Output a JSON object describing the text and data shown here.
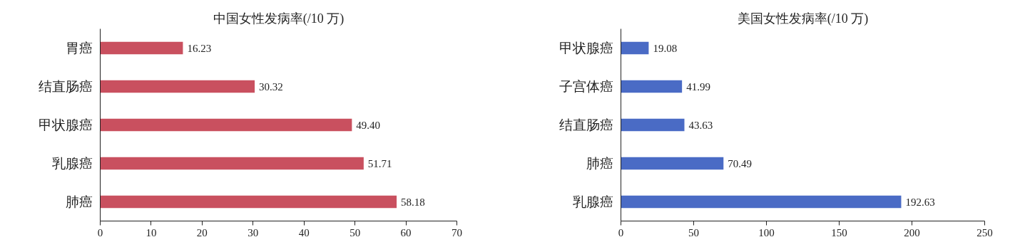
{
  "chart_data": [
    {
      "type": "bar",
      "orientation": "horizontal",
      "title": "中国女性发病率(/10 万)",
      "categories": [
        "胃癌",
        "结直肠癌",
        "甲状腺癌",
        "乳腺癌",
        "肺癌"
      ],
      "values": [
        16.23,
        30.32,
        49.4,
        51.71,
        58.18
      ],
      "value_labels": [
        "16.23",
        "30.32",
        "49.40",
        "51.71",
        "58.18"
      ],
      "color": "#c9505f",
      "xlim": [
        0,
        70
      ],
      "xticks": [
        0,
        10,
        20,
        30,
        40,
        50,
        60,
        70
      ],
      "grid": false
    },
    {
      "type": "bar",
      "orientation": "horizontal",
      "title": "美国女性发病率(/10 万)",
      "categories": [
        "甲状腺癌",
        "子宫体癌",
        "结直肠癌",
        "肺癌",
        "乳腺癌"
      ],
      "values": [
        19.08,
        41.99,
        43.63,
        70.49,
        192.63
      ],
      "value_labels": [
        "19.08",
        "41.99",
        "43.63",
        "70.49",
        "192.63"
      ],
      "color": "#4a6bc5",
      "xlim": [
        0,
        250
      ],
      "xticks": [
        0,
        50,
        100,
        150,
        200,
        250
      ],
      "grid": false
    }
  ]
}
